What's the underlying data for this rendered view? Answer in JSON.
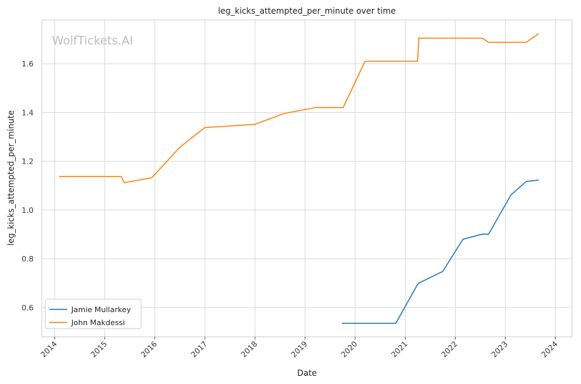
{
  "chart_data": {
    "type": "line",
    "title": "leg_kicks_attempted_per_minute over time",
    "xlabel": "Date",
    "ylabel": "leg_kicks_attempted_per_minute",
    "watermark": "WolfTickets.AI",
    "xlim": [
      "2013-09-29",
      "2024-05-02"
    ],
    "ylim": [
      0.48,
      1.78
    ],
    "x_ticks": [
      "2014",
      "2015",
      "2016",
      "2017",
      "2018",
      "2019",
      "2020",
      "2021",
      "2022",
      "2023",
      "2024"
    ],
    "y_ticks": [
      "0.6",
      "0.8",
      "1.0",
      "1.2",
      "1.4",
      "1.6"
    ],
    "y_tick_values": [
      0.6,
      0.8,
      1.0,
      1.2,
      1.4,
      1.6
    ],
    "grid": true,
    "legend_position": "lower-left",
    "series": [
      {
        "name": "Jamie Mullarkey",
        "color": "#1f77b4",
        "x": [
          "2019-09-28",
          "2020-10-24",
          "2021-04-01",
          "2021-04-10",
          "2021-10-01",
          "2022-02-26",
          "2022-07-16",
          "2022-09-01",
          "2023-02-11",
          "2023-06-03",
          "2023-09-01"
        ],
        "y": [
          0.535,
          0.535,
          0.695,
          0.7,
          0.748,
          0.88,
          0.901,
          0.901,
          1.062,
          1.117,
          1.123
        ]
      },
      {
        "name": "John Makdessi",
        "color": "#ff7f0e",
        "x": [
          "2014-02-01",
          "2015-05-01",
          "2015-05-23",
          "2015-12-10",
          "2016-07-01",
          "2016-12-30",
          "2017-12-30",
          "2018-08-01",
          "2019-03-16",
          "2019-10-06",
          "2020-03-14",
          "2021-04-01",
          "2021-04-10",
          "2022-07-16",
          "2022-09-01",
          "2023-06-03",
          "2023-09-01"
        ],
        "y": [
          1.138,
          1.138,
          1.112,
          1.132,
          1.257,
          1.338,
          1.351,
          1.396,
          1.42,
          1.42,
          1.61,
          1.61,
          1.705,
          1.705,
          1.688,
          1.688,
          1.723
        ]
      }
    ]
  }
}
